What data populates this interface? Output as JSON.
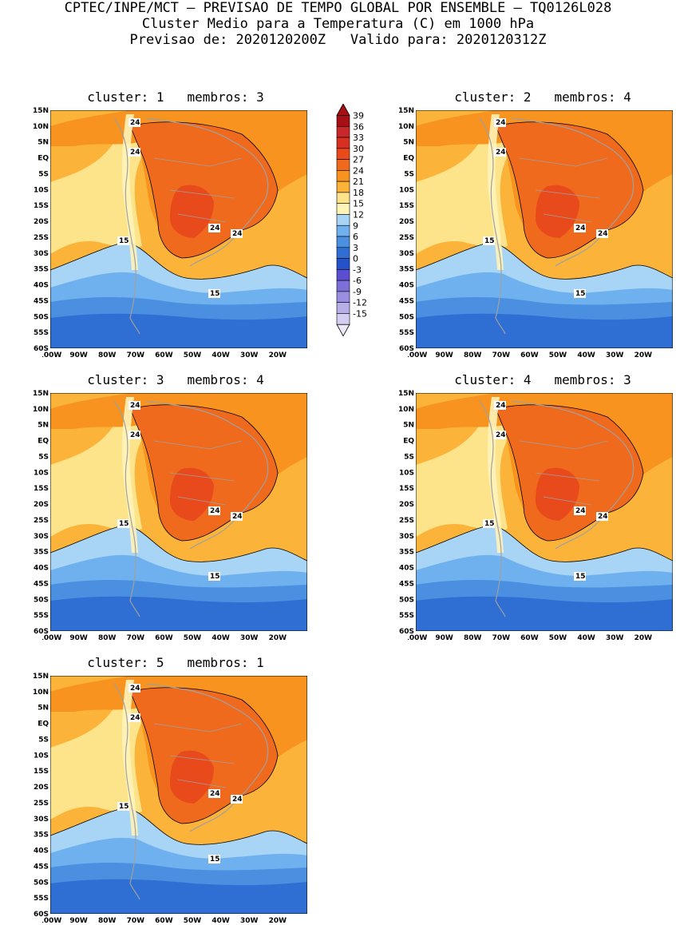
{
  "header": {
    "line1": "CPTEC/INPE/MCT – PREVISAO DE TEMPO GLOBAL POR ENSEMBLE – TQ0126L028",
    "line2": "Cluster Medio para a Temperatura (C) em 1000 hPa",
    "line3": "Previsao de: 2020120200Z   Valido para: 2020120312Z"
  },
  "panels": [
    {
      "title": "cluster: 1   membros: 3"
    },
    {
      "title": "cluster: 2   membros: 4"
    },
    {
      "title": "cluster: 3   membros: 4"
    },
    {
      "title": "cluster: 4   membros: 3"
    },
    {
      "title": "cluster: 5   membros: 1"
    }
  ],
  "lat_labels": [
    "15N",
    "10N",
    "5N",
    "EQ",
    "5S",
    "10S",
    "15S",
    "20S",
    "25S",
    "30S",
    "35S",
    "40S",
    "45S",
    "50S",
    "55S",
    "60S"
  ],
  "lon_labels": [
    "100W",
    "90W",
    "80W",
    "70W",
    "60W",
    "50W",
    "40W",
    "30W",
    "20W"
  ],
  "contour_labels": {
    "c15": "15",
    "c24": "24"
  },
  "colorbar": {
    "levels": [
      "39",
      "36",
      "33",
      "30",
      "27",
      "24",
      "21",
      "18",
      "15",
      "12",
      "9",
      "6",
      "3",
      "0",
      "-3",
      "-6",
      "-9",
      "-12",
      "-15"
    ],
    "colors": [
      "#a50f15",
      "#c8272b",
      "#d7301f",
      "#e84a1c",
      "#f06a1e",
      "#f7931e",
      "#fbb33a",
      "#fde38a",
      "#fff3b8",
      "#a8d4f5",
      "#6fb1ee",
      "#4a8fe0",
      "#2f6fd4",
      "#2452c8",
      "#5c4ed0",
      "#7d6fd8",
      "#9a8ee0",
      "#b8aee8",
      "#d6cef2"
    ]
  }
}
